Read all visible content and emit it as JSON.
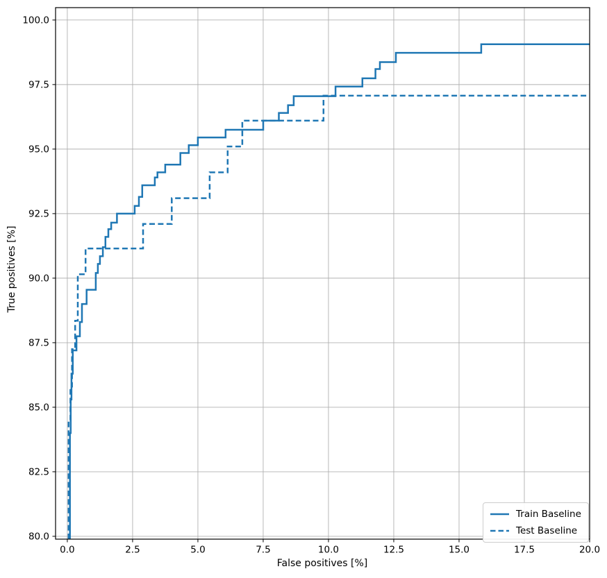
{
  "figure": {
    "background": "#ffffff",
    "accent": "#1f77b4",
    "grid_color": "#b0b0b0",
    "spine_color": "#000000",
    "text_color": "#000000",
    "legend_border_color": "#cccccc"
  },
  "chart_data": {
    "type": "line",
    "subtype": "step-post",
    "title": "",
    "xlabel": "False positives [%]",
    "ylabel": "True positives [%]",
    "xlim": [
      -0.45,
      20.0
    ],
    "ylim": [
      79.89,
      100.48
    ],
    "grid": true,
    "legend_position": "lower right",
    "x_ticks": [
      0.0,
      2.5,
      5.0,
      7.5,
      10.0,
      12.5,
      15.0,
      17.5,
      20.0
    ],
    "x_tick_labels": [
      "0.0",
      "2.5",
      "5.0",
      "7.5",
      "10.0",
      "12.5",
      "15.0",
      "17.5",
      "20.0"
    ],
    "y_ticks": [
      80.0,
      82.5,
      85.0,
      87.5,
      90.0,
      92.5,
      95.0,
      97.5,
      100.0
    ],
    "y_tick_labels": [
      "80.0",
      "82.5",
      "85.0",
      "87.5",
      "90.0",
      "92.5",
      "95.0",
      "97.5",
      "100.0"
    ],
    "series": [
      {
        "name": "Train Baseline",
        "slug": "train-baseline",
        "style": "solid",
        "color": "#1f77b4",
        "points": [
          [
            0.1,
            79.89
          ],
          [
            0.1,
            84.0
          ],
          [
            0.13,
            84.0
          ],
          [
            0.13,
            85.3
          ],
          [
            0.16,
            85.3
          ],
          [
            0.16,
            86.3
          ],
          [
            0.21,
            86.3
          ],
          [
            0.21,
            87.2
          ],
          [
            0.35,
            87.2
          ],
          [
            0.35,
            87.75
          ],
          [
            0.48,
            87.75
          ],
          [
            0.48,
            88.3
          ],
          [
            0.56,
            88.3
          ],
          [
            0.56,
            89.0
          ],
          [
            0.74,
            89.0
          ],
          [
            0.74,
            89.55
          ],
          [
            1.09,
            89.55
          ],
          [
            1.09,
            90.2
          ],
          [
            1.17,
            90.2
          ],
          [
            1.17,
            90.55
          ],
          [
            1.25,
            90.55
          ],
          [
            1.25,
            90.85
          ],
          [
            1.36,
            90.85
          ],
          [
            1.36,
            91.2
          ],
          [
            1.46,
            91.2
          ],
          [
            1.46,
            91.6
          ],
          [
            1.57,
            91.6
          ],
          [
            1.57,
            91.9
          ],
          [
            1.68,
            91.9
          ],
          [
            1.68,
            92.15
          ],
          [
            1.9,
            92.15
          ],
          [
            1.9,
            92.5
          ],
          [
            2.58,
            92.5
          ],
          [
            2.58,
            92.8
          ],
          [
            2.74,
            92.8
          ],
          [
            2.74,
            93.15
          ],
          [
            2.87,
            93.15
          ],
          [
            2.87,
            93.6
          ],
          [
            3.35,
            93.6
          ],
          [
            3.35,
            93.9
          ],
          [
            3.45,
            93.9
          ],
          [
            3.45,
            94.1
          ],
          [
            3.75,
            94.1
          ],
          [
            3.75,
            94.4
          ],
          [
            4.33,
            94.4
          ],
          [
            4.33,
            94.85
          ],
          [
            4.65,
            94.85
          ],
          [
            4.65,
            95.15
          ],
          [
            5.0,
            95.15
          ],
          [
            5.0,
            95.45
          ],
          [
            6.06,
            95.45
          ],
          [
            6.06,
            95.75
          ],
          [
            7.5,
            95.75
          ],
          [
            7.5,
            96.1
          ],
          [
            8.1,
            96.1
          ],
          [
            8.1,
            96.4
          ],
          [
            8.45,
            96.4
          ],
          [
            8.45,
            96.7
          ],
          [
            8.67,
            96.7
          ],
          [
            8.67,
            97.05
          ],
          [
            10.27,
            97.05
          ],
          [
            10.27,
            97.42
          ],
          [
            11.3,
            97.42
          ],
          [
            11.3,
            97.74
          ],
          [
            11.8,
            97.74
          ],
          [
            11.8,
            98.1
          ],
          [
            11.97,
            98.1
          ],
          [
            11.97,
            98.37
          ],
          [
            12.58,
            98.37
          ],
          [
            12.58,
            98.73
          ],
          [
            15.85,
            98.73
          ],
          [
            15.85,
            99.06
          ],
          [
            20.0,
            99.06
          ]
        ]
      },
      {
        "name": "Test Baseline",
        "slug": "test-baseline",
        "style": "dashed",
        "color": "#1f77b4",
        "points": [
          [
            0.05,
            79.89
          ],
          [
            0.05,
            84.5
          ],
          [
            0.12,
            84.5
          ],
          [
            0.12,
            85.8
          ],
          [
            0.18,
            85.8
          ],
          [
            0.18,
            87.25
          ],
          [
            0.3,
            87.25
          ],
          [
            0.3,
            88.35
          ],
          [
            0.4,
            88.35
          ],
          [
            0.4,
            90.15
          ],
          [
            0.7,
            90.15
          ],
          [
            0.7,
            91.15
          ],
          [
            2.9,
            91.15
          ],
          [
            2.9,
            92.1
          ],
          [
            4.0,
            92.1
          ],
          [
            4.0,
            93.1
          ],
          [
            5.45,
            93.1
          ],
          [
            5.45,
            94.1
          ],
          [
            6.14,
            94.1
          ],
          [
            6.14,
            95.1
          ],
          [
            6.7,
            95.1
          ],
          [
            6.7,
            96.1
          ],
          [
            9.81,
            96.1
          ],
          [
            9.81,
            97.07
          ],
          [
            20.0,
            97.07
          ]
        ]
      }
    ]
  },
  "legend": {
    "items": [
      {
        "label": "Train Baseline",
        "style": "solid"
      },
      {
        "label": "Test Baseline",
        "style": "dashed"
      }
    ]
  }
}
